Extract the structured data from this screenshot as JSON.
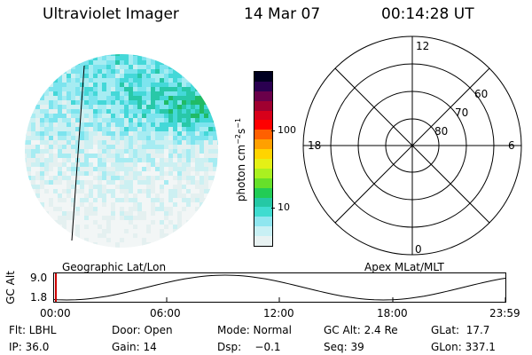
{
  "header": {
    "title": "Ultraviolet Imager",
    "date": "14 Mar 07",
    "time": "00:14:28 UT"
  },
  "colorbar": {
    "label_main": "photon cm",
    "label_exp1": "−2",
    "label_s": "s",
    "label_exp2": "−1",
    "ticks": [
      "100",
      "10"
    ],
    "colors": [
      "#e8f2f2",
      "#c8f0f4",
      "#8fe6ef",
      "#3fdcd0",
      "#25c8a5",
      "#22cc55",
      "#66e02a",
      "#aaf020",
      "#e4f016",
      "#ffd400",
      "#ffa000",
      "#ff6000",
      "#ff0000",
      "#d8001a",
      "#a00030",
      "#6a004a",
      "#2a0050",
      "#000020"
    ]
  },
  "polar": {
    "labels": {
      "top": "12",
      "left": "18",
      "right": "6",
      "bottom": "0",
      "ring60": "60",
      "ring70": "70",
      "ring80": "80"
    }
  },
  "timeline": {
    "geo_label": "Geographic Lat/Lon",
    "apex_label": "Apex MLat/MLT",
    "axis_label": "GC Alt",
    "y_max": "9.0",
    "y_min": "1.8",
    "ticks": [
      "00:00",
      "06:00",
      "12:00",
      "18:00",
      "23:59"
    ]
  },
  "info": {
    "flt": "Flt: LBHL",
    "ip": "IP: 36.0",
    "door": "Door: Open",
    "gain": "Gain: 14",
    "mode": "Mode: Normal",
    "dsp": "Dsp:    −0.1",
    "gc_alt": "GC Alt: 2.4 Re",
    "seq": "Seq: 39",
    "glat": "GLat:  17.7",
    "glon": "GLon: 337.1"
  }
}
